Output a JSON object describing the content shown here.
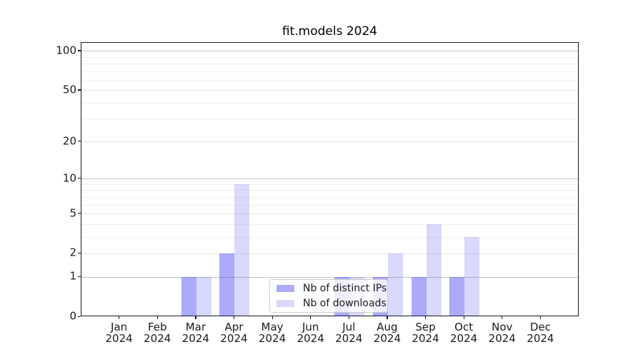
{
  "chart_data": {
    "type": "bar",
    "title": "fit.models 2024",
    "categories": [
      {
        "month": "Jan",
        "year": "2024"
      },
      {
        "month": "Feb",
        "year": "2024"
      },
      {
        "month": "Mar",
        "year": "2024"
      },
      {
        "month": "Apr",
        "year": "2024"
      },
      {
        "month": "May",
        "year": "2024"
      },
      {
        "month": "Jun",
        "year": "2024"
      },
      {
        "month": "Jul",
        "year": "2024"
      },
      {
        "month": "Aug",
        "year": "2024"
      },
      {
        "month": "Sep",
        "year": "2024"
      },
      {
        "month": "Oct",
        "year": "2024"
      },
      {
        "month": "Nov",
        "year": "2024"
      },
      {
        "month": "Dec",
        "year": "2024"
      }
    ],
    "series": [
      {
        "name": "Nb of distinct IPs",
        "color": "rgba(0,0,238,0.33)",
        "values": [
          0,
          0,
          1,
          2,
          0,
          0,
          1,
          1,
          1,
          1,
          0,
          0
        ]
      },
      {
        "name": "Nb of downloads",
        "color": "rgba(0,0,238,0.15)",
        "values": [
          0,
          0,
          1,
          9,
          0,
          0,
          1,
          2,
          4,
          3,
          0,
          0
        ]
      }
    ],
    "xlabel": "",
    "ylabel": "",
    "y_axis": {
      "scale": "log1p",
      "ticks": [
        100,
        50,
        20,
        10,
        5,
        2,
        1,
        0
      ],
      "minor_ticks": [
        3,
        4,
        6,
        7,
        8,
        9,
        30,
        40,
        60,
        70,
        80,
        90
      ],
      "emphasized_gridlines": [
        1,
        10,
        100
      ],
      "ylim": [
        0,
        116
      ]
    },
    "grid": true,
    "legend_position": "lower center"
  },
  "colors": {
    "grid_strong": "#c6c6c6",
    "grid_major": "#e4e4e4",
    "grid_minor": "#f0f0f0",
    "axis": "#1a1a1a",
    "legend_border": "#cccccc"
  }
}
